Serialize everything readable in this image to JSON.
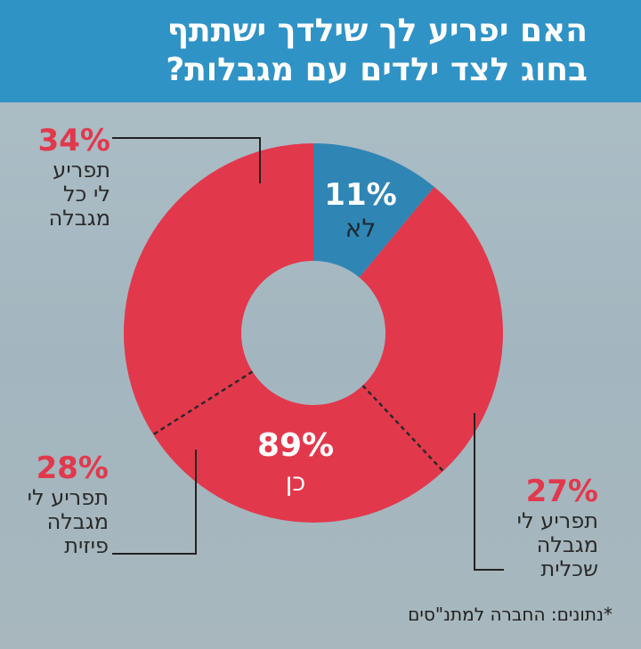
{
  "chart_data": {
    "type": "pie",
    "title": "האם יפריע לך שילדך ישתתף בחוג לצד ילדים עם מגבלות?",
    "title_lines": [
      "האם יפריע לך שילדך ישתתף",
      "בחוג לצד ילדים עם מגבלות?"
    ],
    "categories": [
      "לא",
      "כן"
    ],
    "values": [
      11,
      89
    ],
    "slice_labels": [
      "11%",
      "89%"
    ],
    "breakdown": [
      {
        "pct": "34%",
        "value": 34,
        "lines": [
          "תפריע",
          "לי כל",
          "מגבלה"
        ]
      },
      {
        "pct": "27%",
        "value": 27,
        "lines": [
          "תפריע לי",
          "מגבלה",
          "שכלית"
        ]
      },
      {
        "pct": "28%",
        "value": 28,
        "lines": [
          "תפריע לי",
          "מגבלה",
          "פיזית"
        ]
      }
    ],
    "colors": {
      "no": "#2f86b5",
      "yes": "#e2384c",
      "header": "#2f93c6"
    },
    "source": "*נתונים: החברה למתנ\"סים"
  }
}
